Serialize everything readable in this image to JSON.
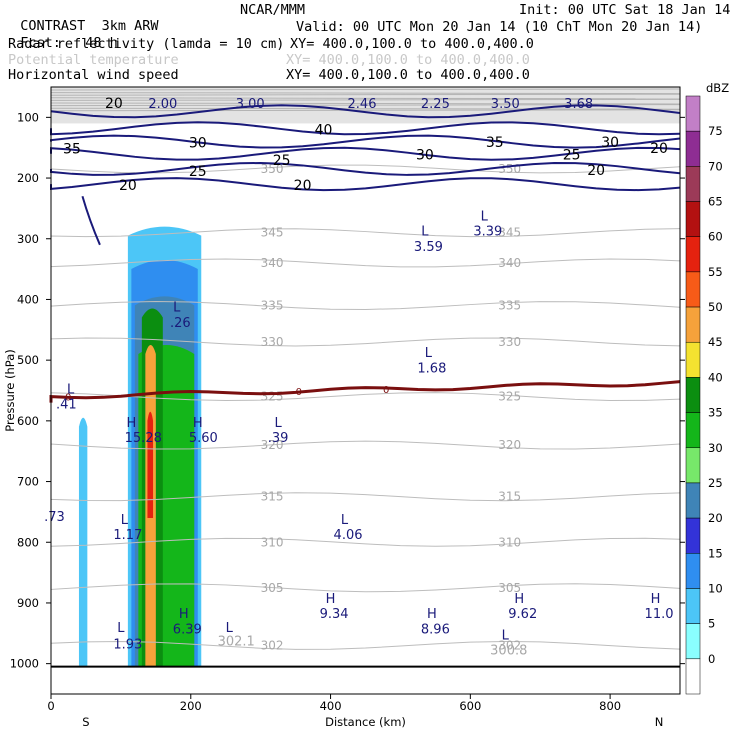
{
  "header": {
    "project": "CONTRAST",
    "model": "3km ARW",
    "center": "NCAR/MMM",
    "init": "Init: 00 UTC Sat 18 Jan 14",
    "fcst_label": "Fcst:",
    "fcst_value": "48 h",
    "valid": "Valid: 00 UTC Mon 20 Jan 14 (10 ChT Mon 20 Jan 14)",
    "fields": [
      {
        "name": "Radar reflectivity (lamda = 10 cm)",
        "xy": "XY= 400.0,100.0 to 400.0,400.0",
        "color": "#000000"
      },
      {
        "name": "Potential temperature",
        "xy": "XY= 400.0,100.0 to 400.0,400.0",
        "color": "#c8c8c8"
      },
      {
        "name": "Horizontal wind speed",
        "xy": "XY= 400.0,100.0 to 400.0,400.0",
        "color": "#000000"
      }
    ]
  },
  "chart_data": {
    "type": "cross-section",
    "xlabel": "Distance (km)",
    "ylabel": "Pressure (hPa)",
    "xlim": [
      0,
      900
    ],
    "ylim": [
      1050,
      50
    ],
    "x_ticks": [
      0,
      200,
      400,
      600,
      800
    ],
    "y_ticks": [
      100,
      200,
      300,
      400,
      500,
      600,
      700,
      800,
      900,
      1000
    ],
    "x_end_labels": {
      "left": "S",
      "right": "N"
    },
    "colorbar": {
      "unit": "dBZ",
      "levels": [
        0,
        5,
        10,
        15,
        20,
        25,
        30,
        35,
        40,
        45,
        50,
        55,
        60,
        65,
        70,
        75
      ],
      "colors": [
        "#ffffff",
        "#8affff",
        "#4cc6f7",
        "#2f8ef0",
        "#3333d8",
        "#3f84b7",
        "#77e86a",
        "#14b61a",
        "#0b8e10",
        "#f4e230",
        "#f6a23b",
        "#f75b18",
        "#e5220f",
        "#b31111",
        "#9c3a58",
        "#8e2d93",
        "#c27fc7"
      ]
    },
    "theta_contours": [
      {
        "label": "350",
        "p": 185
      },
      {
        "label": "345",
        "p": 290
      },
      {
        "label": "340",
        "p": 340
      },
      {
        "label": "335",
        "p": 410
      },
      {
        "label": "330",
        "p": 470
      },
      {
        "label": "325",
        "p": 560
      },
      {
        "label": "320",
        "p": 640
      },
      {
        "label": "315",
        "p": 725
      },
      {
        "label": "310",
        "p": 800
      },
      {
        "label": "305",
        "p": 875
      },
      {
        "label": "302",
        "p": 970
      }
    ],
    "wind_contour_labels": [
      {
        "label": "20",
        "x": 90,
        "p": 78
      },
      {
        "label": "40",
        "x": 390,
        "p": 122
      },
      {
        "label": "35",
        "x": 30,
        "p": 153
      },
      {
        "label": "30",
        "x": 210,
        "p": 143
      },
      {
        "label": "25",
        "x": 330,
        "p": 172
      },
      {
        "label": "25",
        "x": 210,
        "p": 190
      },
      {
        "label": "20",
        "x": 110,
        "p": 213
      },
      {
        "label": "20",
        "x": 360,
        "p": 213
      },
      {
        "label": "30",
        "x": 535,
        "p": 163
      },
      {
        "label": "35",
        "x": 635,
        "p": 142
      },
      {
        "label": "25",
        "x": 745,
        "p": 163
      },
      {
        "label": "30",
        "x": 800,
        "p": 142
      },
      {
        "label": "20",
        "x": 870,
        "p": 152
      },
      {
        "label": "20",
        "x": 780,
        "p": 188
      }
    ],
    "zero_line": {
      "label": "0",
      "p": 560
    },
    "annotations": [
      {
        "text": "2.00",
        "x": 160,
        "p": 85
      },
      {
        "text": "3.00",
        "x": 285,
        "p": 85
      },
      {
        "text": "2.46",
        "x": 445,
        "p": 85
      },
      {
        "text": "2.25",
        "x": 550,
        "p": 85
      },
      {
        "text": "3.50",
        "x": 650,
        "p": 85
      },
      {
        "text": "3.68",
        "x": 755,
        "p": 85
      },
      {
        "text": "L",
        "x": 535,
        "p": 295
      },
      {
        "text": "3.59",
        "x": 540,
        "p": 320
      },
      {
        "text": "L",
        "x": 620,
        "p": 270
      },
      {
        "text": "3.39",
        "x": 625,
        "p": 295
      },
      {
        "text": "L",
        "x": 180,
        "p": 420
      },
      {
        "text": ".26",
        "x": 185,
        "p": 445
      },
      {
        "text": "L",
        "x": 540,
        "p": 495
      },
      {
        "text": "1.68",
        "x": 545,
        "p": 520
      },
      {
        "text": "L",
        "x": 28,
        "p": 555
      },
      {
        "text": ".41",
        "x": 22,
        "p": 580
      },
      {
        "text": "H",
        "x": 115,
        "p": 610
      },
      {
        "text": "15.28",
        "x": 132,
        "p": 635
      },
      {
        "text": "H",
        "x": 210,
        "p": 610
      },
      {
        "text": "5.60",
        "x": 218,
        "p": 635
      },
      {
        "text": "L",
        "x": 325,
        "p": 610
      },
      {
        "text": ".39",
        "x": 325,
        "p": 635
      },
      {
        "text": ".73",
        "x": 5,
        "p": 765
      },
      {
        "text": "L",
        "x": 105,
        "p": 770
      },
      {
        "text": "1.17",
        "x": 110,
        "p": 795
      },
      {
        "text": "L",
        "x": 420,
        "p": 770
      },
      {
        "text": "4.06",
        "x": 425,
        "p": 795
      },
      {
        "text": "H",
        "x": 400,
        "p": 900
      },
      {
        "text": "9.34",
        "x": 405,
        "p": 925
      },
      {
        "text": "H",
        "x": 545,
        "p": 925
      },
      {
        "text": "8.96",
        "x": 550,
        "p": 950
      },
      {
        "text": "H",
        "x": 670,
        "p": 900
      },
      {
        "text": "9.62",
        "x": 675,
        "p": 925
      },
      {
        "text": "H",
        "x": 865,
        "p": 900
      },
      {
        "text": "11.0",
        "x": 870,
        "p": 925
      },
      {
        "text": "H",
        "x": 190,
        "p": 925
      },
      {
        "text": "6.39",
        "x": 195,
        "p": 950
      },
      {
        "text": "L",
        "x": 100,
        "p": 948
      },
      {
        "text": "1.93",
        "x": 110,
        "p": 975
      },
      {
        "text": "L",
        "x": 650,
        "p": 960
      },
      {
        "text": "300.8",
        "x": 655,
        "p": 985
      },
      {
        "text": "L",
        "x": 255,
        "p": 948
      },
      {
        "text": "302.1",
        "x": 265,
        "p": 970
      }
    ],
    "reflectivity_columns": [
      {
        "name": "cell-a",
        "x0": 40,
        "x1": 52,
        "p_top": 590,
        "p_bot": 1005,
        "dbz": 5
      },
      {
        "name": "cell-b-outer",
        "x0": 110,
        "x1": 215,
        "p_top": 275,
        "p_bot": 1005,
        "dbz": 5
      },
      {
        "name": "cell-b-10",
        "x0": 115,
        "x1": 210,
        "p_top": 330,
        "p_bot": 1005,
        "dbz": 10
      },
      {
        "name": "cell-b-20",
        "x0": 120,
        "x1": 205,
        "p_top": 390,
        "p_bot": 1005,
        "dbz": 20
      },
      {
        "name": "cell-b-30",
        "x0": 125,
        "x1": 205,
        "p_top": 470,
        "p_bot": 1005,
        "dbz": 30
      },
      {
        "name": "cell-b-35",
        "x0": 130,
        "x1": 160,
        "p_top": 410,
        "p_bot": 1005,
        "dbz": 35
      },
      {
        "name": "cell-b-45",
        "x0": 135,
        "x1": 150,
        "p_top": 470,
        "p_bot": 1005,
        "dbz": 45
      },
      {
        "name": "cell-b-55",
        "x0": 138,
        "x1": 146,
        "p_top": 580,
        "p_bot": 760,
        "dbz": 55
      }
    ]
  }
}
